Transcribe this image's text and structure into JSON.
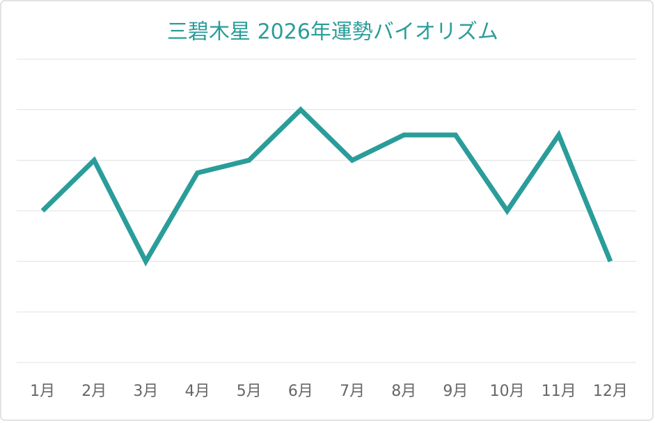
{
  "chart_data": {
    "type": "line",
    "title": "三碧木星  2026年運勢バイオリズム",
    "categories": [
      "1月",
      "2月",
      "3月",
      "4月",
      "5月",
      "6月",
      "7月",
      "8月",
      "9月",
      "10月",
      "11月",
      "12月"
    ],
    "values": [
      3,
      4,
      2,
      3.75,
      4,
      5,
      4,
      4.5,
      4.5,
      3,
      4.5,
      2
    ],
    "color": "#2a9d9a",
    "ylim": [
      0,
      6
    ],
    "yticks": [
      0,
      1,
      2,
      3,
      4,
      5,
      6
    ],
    "grid": true
  }
}
